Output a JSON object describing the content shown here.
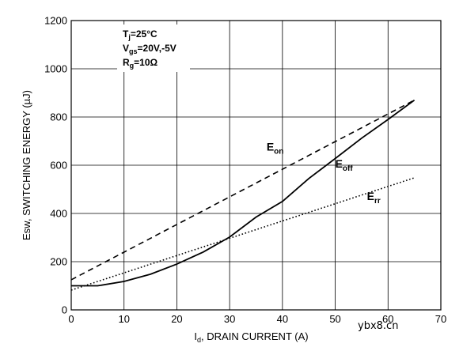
{
  "chart_data": {
    "type": "line",
    "xlabel": {
      "main": "I",
      "sub": "d",
      "rest": ", DRAIN CURRENT (A)"
    },
    "ylabel": "Esw, SWITCHING ENERGY (µJ)",
    "xlim": [
      0,
      70
    ],
    "ylim": [
      0,
      1200
    ],
    "xticks": [
      "0",
      "10",
      "20",
      "30",
      "40",
      "50",
      "60",
      "70"
    ],
    "yticks": [
      "0",
      "200",
      "400",
      "600",
      "800",
      "1000",
      "1200"
    ],
    "grid": true,
    "conditions": [
      {
        "main": "T",
        "sub": "j",
        "rest": "=25°C"
      },
      {
        "main": "V",
        "sub": "gs",
        "rest": "=20V,-5V"
      },
      {
        "main": "R",
        "sub": "g",
        "rest": "=10Ω"
      }
    ],
    "series": [
      {
        "name": "E",
        "sub": "on",
        "style": "dashed",
        "x": [
          0,
          65
        ],
        "y": [
          125,
          870
        ],
        "label_at": [
          37,
          660
        ]
      },
      {
        "name": "E",
        "sub": "off",
        "style": "solid",
        "x": [
          0,
          5,
          10,
          15,
          20,
          25,
          30,
          35,
          40,
          45,
          50,
          55,
          60,
          65
        ],
        "y": [
          100,
          100,
          118,
          148,
          190,
          240,
          302,
          385,
          450,
          545,
          628,
          712,
          790,
          870
        ],
        "label_at": [
          50,
          590
        ]
      },
      {
        "name": "E",
        "sub": "rr",
        "style": "dotted",
        "x": [
          0,
          65
        ],
        "y": [
          82,
          548
        ],
        "label_at": [
          56,
          455
        ]
      }
    ]
  },
  "watermark": "ybx8.cn"
}
